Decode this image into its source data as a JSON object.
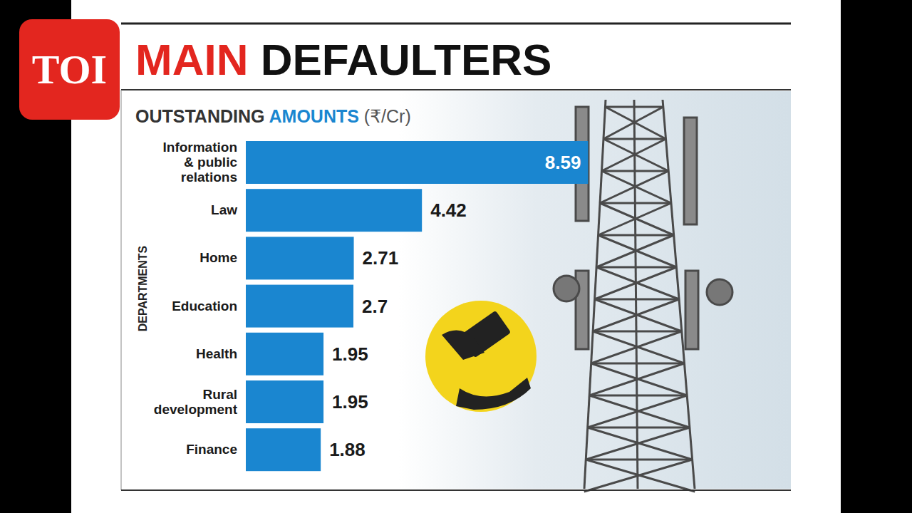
{
  "logo": "TOI",
  "chart_data": {
    "type": "bar",
    "orientation": "horizontal",
    "title": "MAIN DEFAULTERS",
    "subtitle": "OUTSTANDING AMOUNTS (₹/Cr)",
    "y_label": "DEPARTMENTS",
    "categories": [
      "Information & public relations",
      "Law",
      "Home",
      "Education",
      "Health",
      "Rural development",
      "Finance"
    ],
    "values": [
      8.59,
      4.42,
      2.71,
      2.7,
      1.95,
      1.95,
      1.88
    ],
    "color": "#1a86d0",
    "xlim": [
      0,
      13.5
    ],
    "tick_labels": false,
    "grid": false,
    "data_labels": true
  }
}
